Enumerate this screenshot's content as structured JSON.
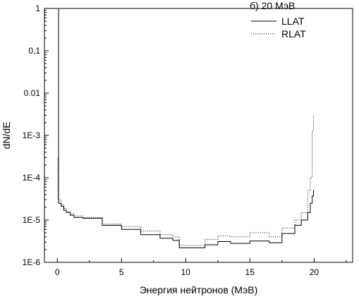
{
  "chart_data": {
    "type": "line",
    "title": "б) 20 МэВ",
    "xlabel": "Энергия нейтронов (МэВ)",
    "ylabel": "dN/dE",
    "xlim": [
      -1,
      23
    ],
    "ylim": [
      1e-06,
      1
    ],
    "yscale": "log",
    "x_ticks": [
      0,
      5,
      10,
      15,
      20
    ],
    "x_tick_labels": [
      "0",
      "5",
      "10",
      "15",
      "20"
    ],
    "y_ticks": [
      1e-06,
      1e-05,
      0.0001,
      0.001,
      0.01,
      0.1,
      1
    ],
    "y_tick_labels": [
      "1E-6",
      "1E-5",
      "1E-4",
      "1E-3",
      "0.01",
      "0,1",
      "1"
    ],
    "legend_position": "top-right",
    "series": [
      {
        "name": "LLAT",
        "style": "solid",
        "color": "#000000",
        "x": [
          0,
          0.1,
          0.1,
          0.3,
          0.3,
          0.5,
          0.5,
          0.7,
          0.7,
          1.0,
          1.0,
          1.3,
          1.3,
          2.0,
          2.0,
          3.5,
          3.5,
          5.0,
          5.0,
          6.5,
          6.5,
          8.0,
          8.0,
          9.0,
          9.0,
          9.5,
          9.5,
          11.5,
          11.5,
          12.5,
          12.5,
          13.5,
          13.5,
          15.0,
          15.0,
          16.5,
          16.5,
          17.5,
          17.5,
          18.5,
          18.5,
          19.0,
          19.0,
          19.5,
          19.5,
          19.7,
          19.7,
          19.85,
          19.85,
          19.95,
          19.95,
          20.0
        ],
        "y": [
          1.0,
          1.0,
          2.5e-05,
          2.5e-05,
          2.1e-05,
          2.1e-05,
          1.7e-05,
          1.7e-05,
          1.5e-05,
          1.5e-05,
          1.3e-05,
          1.3e-05,
          1.15e-05,
          1.15e-05,
          1.1e-05,
          1.1e-05,
          7.5e-06,
          7.5e-06,
          6e-06,
          6e-06,
          4.5e-06,
          4.5e-06,
          3.7e-06,
          3.7e-06,
          3.3e-06,
          3.3e-06,
          2.2e-06,
          2.2e-06,
          2.6e-06,
          2.6e-06,
          3.1e-06,
          3.1e-06,
          2.8e-06,
          2.8e-06,
          3.2e-06,
          3.2e-06,
          2.9e-06,
          2.9e-06,
          4.8e-06,
          4.8e-06,
          7.5e-06,
          7.5e-06,
          1e-05,
          1e-05,
          1.5e-05,
          1.5e-05,
          2.5e-05,
          2.5e-05,
          3.7e-05,
          3.7e-05,
          5e-05,
          5e-05
        ]
      },
      {
        "name": "RLAT",
        "style": "dotted",
        "color": "#000000",
        "x": [
          0.05,
          0.05,
          0.1,
          0.3,
          0.3,
          0.5,
          0.5,
          0.7,
          0.7,
          1.0,
          1.0,
          1.3,
          1.3,
          2.0,
          2.0,
          3.5,
          3.5,
          5.0,
          5.0,
          6.5,
          6.5,
          8.0,
          8.0,
          9.0,
          9.0,
          9.5,
          9.5,
          11.5,
          11.5,
          12.5,
          12.5,
          13.5,
          13.5,
          15.0,
          15.0,
          16.5,
          16.5,
          17.5,
          17.5,
          18.5,
          18.5,
          19.0,
          19.0,
          19.5,
          19.5,
          19.7,
          19.7,
          19.85,
          19.85,
          19.95,
          19.95,
          20.0
        ],
        "y": [
          0.0003,
          3e-05,
          3e-05,
          3e-05,
          2.3e-05,
          2.3e-05,
          1.9e-05,
          1.9e-05,
          1.6e-05,
          1.6e-05,
          1.4e-05,
          1.4e-05,
          1.25e-05,
          1.25e-05,
          1.15e-05,
          1.15e-05,
          8e-06,
          8e-06,
          7e-06,
          7e-06,
          5.5e-06,
          5.5e-06,
          4.5e-06,
          4.5e-06,
          4e-06,
          4e-06,
          2.5e-06,
          2.5e-06,
          3.5e-06,
          3.5e-06,
          4.2e-06,
          4.2e-06,
          4e-06,
          4e-06,
          5e-06,
          5e-06,
          4e-06,
          4e-06,
          6.5e-06,
          6.5e-06,
          1e-05,
          1e-05,
          1.5e-05,
          1.5e-05,
          5e-05,
          5e-05,
          0.0001,
          0.0001,
          0.0013,
          0.0013,
          0.003,
          0.003
        ]
      }
    ]
  }
}
